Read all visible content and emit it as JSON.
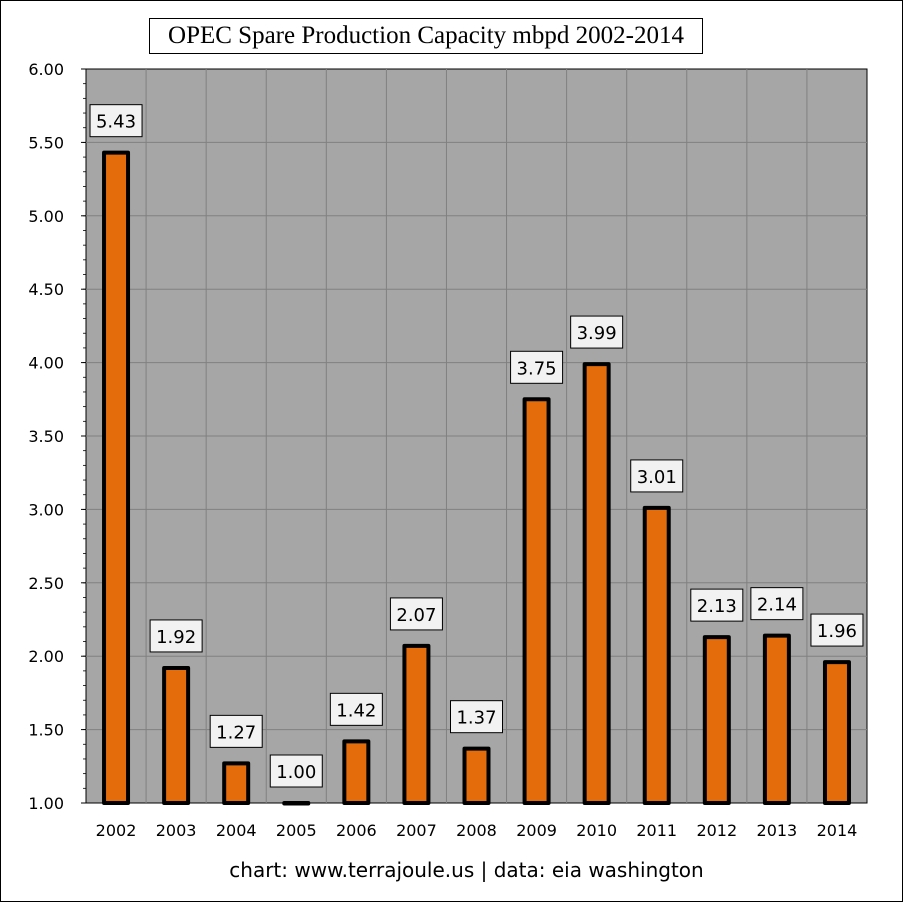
{
  "chart_data": {
    "type": "bar",
    "title": "OPEC Spare Production Capacity mbpd 2002-2014",
    "categories": [
      "2002",
      "2003",
      "2004",
      "2005",
      "2006",
      "2007",
      "2008",
      "2009",
      "2010",
      "2011",
      "2012",
      "2013",
      "2014"
    ],
    "values": [
      5.43,
      1.92,
      1.27,
      1.0,
      1.42,
      2.07,
      1.37,
      3.75,
      3.99,
      3.01,
      2.13,
      2.14,
      1.96
    ],
    "data_labels": [
      "5.43",
      "1.92",
      "1.27",
      "1.00",
      "1.42",
      "2.07",
      "1.37",
      "3.75",
      "3.99",
      "3.01",
      "2.13",
      "2.14",
      "1.96"
    ],
    "ylim": [
      1.0,
      6.0
    ],
    "yticks": [
      "1.00",
      "1.50",
      "2.00",
      "2.50",
      "3.00",
      "3.50",
      "4.00",
      "4.50",
      "5.00",
      "5.50",
      "6.00"
    ],
    "xlabel": "",
    "ylabel": "",
    "grid": true,
    "legend": "none"
  },
  "footer": "chart:  www.terrajoule.us  |  data: eia washington",
  "colors": {
    "bar_fill": "#E46C0A",
    "bar_stroke": "#000000",
    "plot_background": "#A6A6A6",
    "grid": "#808080",
    "label_box": "#F2F2F2"
  }
}
